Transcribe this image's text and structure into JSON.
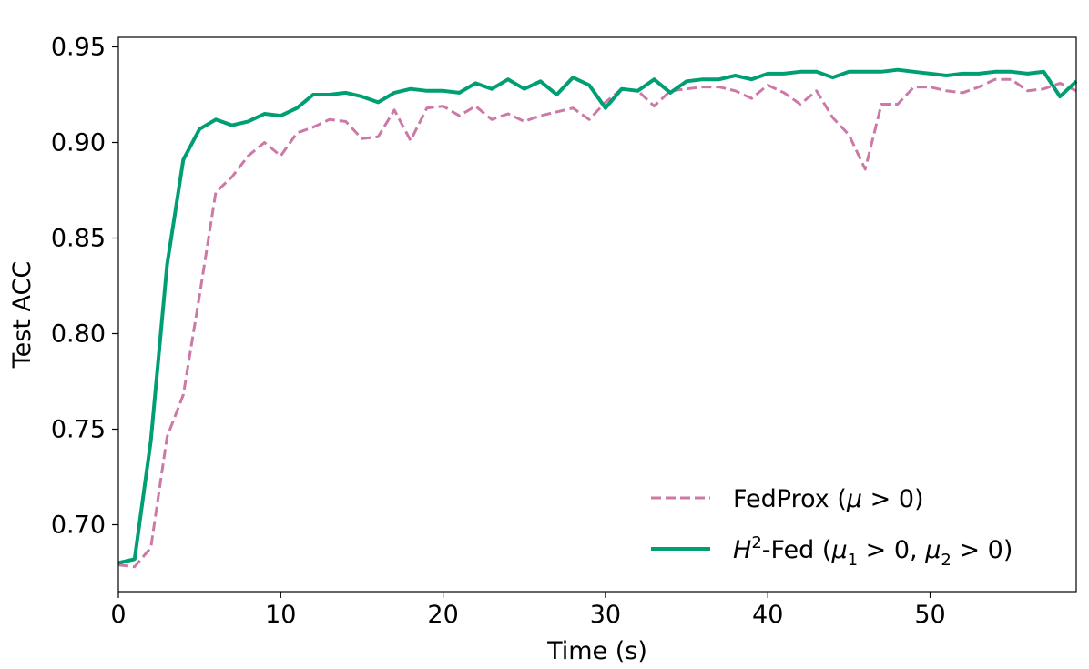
{
  "chart_data": {
    "type": "line",
    "xlabel": "Time (s)",
    "ylabel": "Test ACC",
    "xlim": [
      0,
      59
    ],
    "ylim": [
      0.665,
      0.955
    ],
    "x_ticks": [
      0,
      10,
      20,
      30,
      40,
      50
    ],
    "y_ticks": [
      0.7,
      0.75,
      0.8,
      0.85,
      0.9,
      0.95
    ],
    "x_tick_labels": [
      "0",
      "10",
      "20",
      "30",
      "40",
      "50"
    ],
    "y_tick_labels": [
      "0.70",
      "0.75",
      "0.80",
      "0.85",
      "0.90",
      "0.95"
    ],
    "grid": false,
    "legend_position": "lower-right",
    "series": [
      {
        "name": "FedProx (μ > 0)",
        "legend_main": "FedProx (",
        "legend_var": "μ",
        "legend_rest": " > 0)",
        "color": "#cc79a7",
        "style": "dashed",
        "x": [
          0,
          1,
          2,
          3,
          4,
          5,
          6,
          7,
          8,
          9,
          10,
          11,
          12,
          13,
          14,
          15,
          16,
          17,
          18,
          19,
          20,
          21,
          22,
          23,
          24,
          25,
          26,
          27,
          28,
          29,
          30,
          31,
          32,
          33,
          34,
          35,
          36,
          37,
          38,
          39,
          40,
          41,
          42,
          43,
          44,
          45,
          46,
          47,
          48,
          49,
          50,
          51,
          52,
          53,
          54,
          55,
          56,
          57,
          58,
          59
        ],
        "y": [
          0.679,
          0.678,
          0.688,
          0.746,
          0.768,
          0.82,
          0.874,
          0.882,
          0.893,
          0.9,
          0.893,
          0.905,
          0.908,
          0.912,
          0.911,
          0.902,
          0.903,
          0.917,
          0.901,
          0.918,
          0.919,
          0.914,
          0.919,
          0.912,
          0.915,
          0.911,
          0.914,
          0.916,
          0.918,
          0.912,
          0.921,
          0.928,
          0.927,
          0.919,
          0.927,
          0.928,
          0.929,
          0.929,
          0.927,
          0.923,
          0.93,
          0.926,
          0.92,
          0.927,
          0.913,
          0.904,
          0.886,
          0.92,
          0.92,
          0.929,
          0.929,
          0.927,
          0.926,
          0.929,
          0.933,
          0.933,
          0.927,
          0.928,
          0.931,
          0.927
        ]
      },
      {
        "name": "H2-Fed (μ1 > 0, μ2 > 0)",
        "legend_var": "H",
        "legend_sup": "2",
        "legend_main": "-Fed (",
        "legend_var2": "μ",
        "legend_sub2": "1",
        "legend_mid": " > 0, ",
        "legend_var3": "μ",
        "legend_sub3": "2",
        "legend_rest": " > 0)",
        "color": "#009e73",
        "style": "solid",
        "x": [
          0,
          1,
          2,
          3,
          4,
          5,
          6,
          7,
          8,
          9,
          10,
          11,
          12,
          13,
          14,
          15,
          16,
          17,
          18,
          19,
          20,
          21,
          22,
          23,
          24,
          25,
          26,
          27,
          28,
          29,
          30,
          31,
          32,
          33,
          34,
          35,
          36,
          37,
          38,
          39,
          40,
          41,
          42,
          43,
          44,
          45,
          46,
          47,
          48,
          49,
          50,
          51,
          52,
          53,
          54,
          55,
          56,
          57,
          58,
          59
        ],
        "y": [
          0.68,
          0.682,
          0.744,
          0.836,
          0.891,
          0.907,
          0.912,
          0.909,
          0.911,
          0.915,
          0.914,
          0.918,
          0.925,
          0.925,
          0.926,
          0.924,
          0.921,
          0.926,
          0.928,
          0.927,
          0.927,
          0.926,
          0.931,
          0.928,
          0.933,
          0.928,
          0.932,
          0.925,
          0.934,
          0.93,
          0.918,
          0.928,
          0.927,
          0.933,
          0.926,
          0.932,
          0.933,
          0.933,
          0.935,
          0.933,
          0.936,
          0.936,
          0.937,
          0.937,
          0.934,
          0.937,
          0.937,
          0.937,
          0.938,
          0.937,
          0.936,
          0.935,
          0.936,
          0.936,
          0.937,
          0.937,
          0.936,
          0.937,
          0.924,
          0.932
        ]
      }
    ]
  }
}
